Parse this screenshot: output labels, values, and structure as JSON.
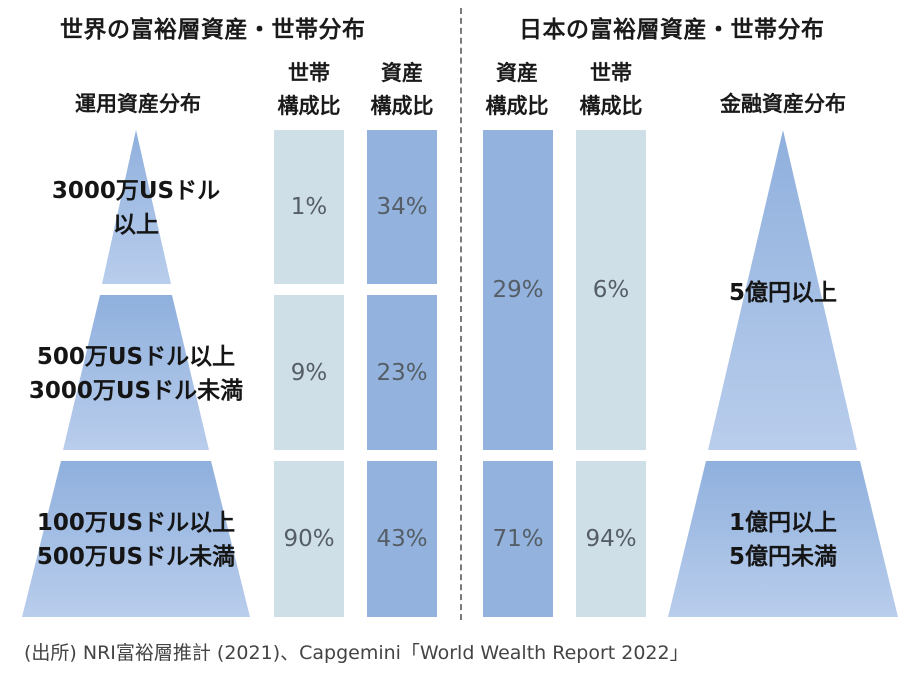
{
  "left": {
    "title": "世界の富裕層資産・世帯分布",
    "pyramid_header": "運用資産分布",
    "col1_header": [
      "世帯",
      "構成比"
    ],
    "col2_header": [
      "資産",
      "構成比"
    ],
    "tiers": [
      {
        "label": [
          "3000万USドル",
          "以上"
        ],
        "household": "1%",
        "assets": "34%"
      },
      {
        "label": [
          "500万USドル以上",
          "3000万USドル未満"
        ],
        "household": "9%",
        "assets": "23%"
      },
      {
        "label": [
          "100万USドル以上",
          "500万USドル未満"
        ],
        "household": "90%",
        "assets": "43%"
      }
    ]
  },
  "right": {
    "title": "日本の富裕層資産・世帯分布",
    "pyramid_header": "金融資産分布",
    "col1_header": [
      "資産",
      "構成比"
    ],
    "col2_header": [
      "世帯",
      "構成比"
    ],
    "tiers": [
      {
        "label": [
          "5億円以上"
        ],
        "assets": "29%",
        "household": "6%"
      },
      {
        "label": [
          "1億円以上",
          "5億円未満"
        ],
        "assets": "71%",
        "household": "94%"
      }
    ]
  },
  "source": "(出所) NRI富裕層推計 (2021)、Capgemini「World Wealth Report 2022」",
  "colors": {
    "light_bar": "#cfdfe7",
    "mid_bar": "#93b3de",
    "pyramid_top": "#8fb0dd",
    "pyramid_bottom": "#b9cdec"
  },
  "chart_data": [
    {
      "type": "table",
      "title": "世界の富裕層資産・世帯分布",
      "categories": [
        "3000万USドル以上",
        "500万USドル以上3000万USドル未満",
        "100万USドル以上500万USドル未満"
      ],
      "series": [
        {
          "name": "世帯構成比",
          "values": [
            1,
            9,
            90
          ]
        },
        {
          "name": "資産構成比",
          "values": [
            34,
            23,
            43
          ]
        }
      ]
    },
    {
      "type": "table",
      "title": "日本の富裕層資産・世帯分布",
      "categories": [
        "5億円以上",
        "1億円以上5億円未満"
      ],
      "series": [
        {
          "name": "資産構成比",
          "values": [
            29,
            71
          ]
        },
        {
          "name": "世帯構成比",
          "values": [
            6,
            94
          ]
        }
      ]
    }
  ]
}
